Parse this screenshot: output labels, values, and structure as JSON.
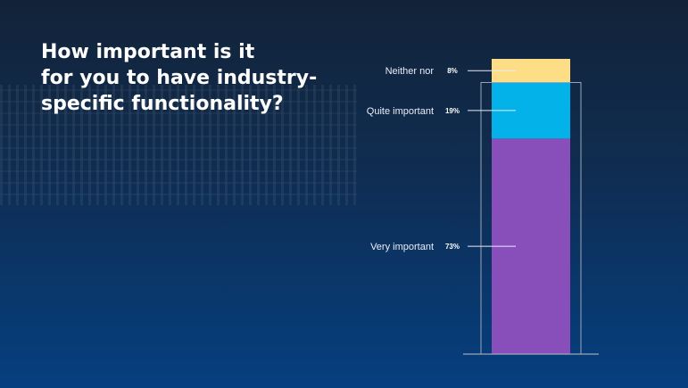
{
  "title_lines": [
    "How important is it",
    "for you to have industry-",
    "specific functionality?"
  ],
  "chart_data": {
    "type": "bar",
    "stacked": true,
    "categories": [
      ""
    ],
    "series": [
      {
        "name": "Very important",
        "values": [
          73
        ],
        "label": "73%",
        "color": "#884fbb"
      },
      {
        "name": "Quite important",
        "values": [
          19
        ],
        "label": "19%",
        "color": "#03b2e8"
      },
      {
        "name": "Neither nor",
        "values": [
          8
        ],
        "label": "8%",
        "color": "#fddd86"
      }
    ],
    "title": "How important is it for you to have industry-specific functionality?",
    "ylim": [
      0,
      100
    ],
    "grid": false,
    "legend": "none"
  }
}
